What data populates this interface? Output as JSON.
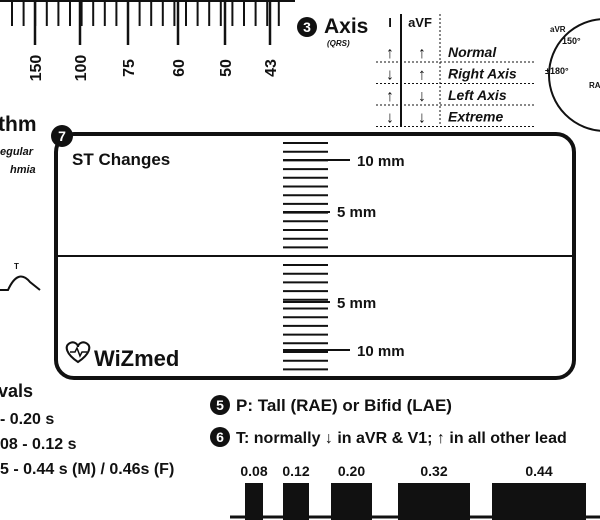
{
  "ruler": {
    "rates": [
      "150",
      "100",
      "75",
      "60",
      "50",
      "43"
    ]
  },
  "axis": {
    "number": "3",
    "title": "Axis",
    "subtitle": "(QRS)",
    "headers": [
      "I",
      "aVF"
    ],
    "rows": [
      {
        "lead_i": "↑",
        "avf": "↑",
        "label": "Normal"
      },
      {
        "lead_i": "↓",
        "avf": "↑",
        "label": "Right Axis"
      },
      {
        "lead_i": "↑",
        "avf": "↓",
        "label": "Left Axis"
      },
      {
        "lead_i": "↓",
        "avf": "↓",
        "label": "Extreme"
      }
    ]
  },
  "axis_wheel": {
    "avr": "aVR",
    "deg150": "150°",
    "deg180": "±180°",
    "ra": "RA"
  },
  "rhythm": {
    "title": "thm",
    "lines": [
      "egular",
      "hmia"
    ],
    "wave_label": "T"
  },
  "st": {
    "number": "7",
    "title": "ST Changes",
    "marks": [
      "10 mm",
      "5 mm",
      "5 mm",
      "10 mm"
    ],
    "brand": "WiZmed"
  },
  "intervals": {
    "title": "vals",
    "lines": [
      "- 0.20 s",
      "08 - 0.12 s",
      "5 - 0.44 s (M) / 0.46s (F)"
    ]
  },
  "p_wave": {
    "number": "5",
    "text": "P: Tall (RAE) or Bifid (LAE)"
  },
  "t_wave": {
    "number": "6",
    "text": "T: normally ↓ in aVR & V1; ↑ in all other lead"
  },
  "bottom_scale": [
    "0.08",
    "0.12",
    "0.20",
    "0.32",
    "0.44"
  ]
}
